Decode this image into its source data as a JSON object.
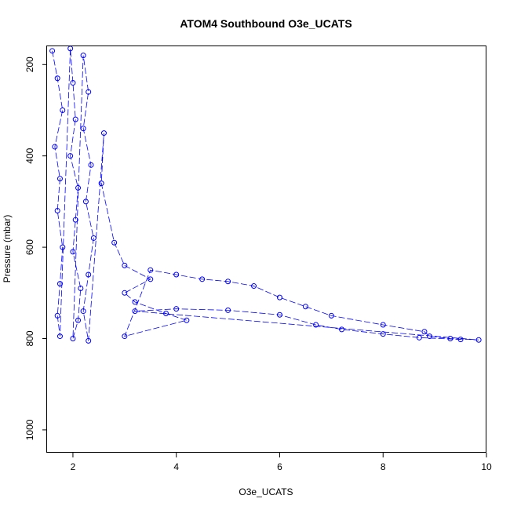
{
  "chart_data": {
    "type": "scatter",
    "title": "ATOM4 Southbound O3e_UCATS",
    "xlabel": "O3e_UCATS",
    "ylabel": "Pressure (mbar)",
    "xlim": [
      1.5,
      10.0
    ],
    "ylim": [
      1050,
      160
    ],
    "y_reversed": true,
    "x_ticks": [
      2,
      4,
      6,
      8,
      10
    ],
    "y_ticks": [
      200,
      400,
      600,
      800,
      1000
    ],
    "grid": false,
    "legend": "none",
    "marker": "open-circle",
    "connect_points": true,
    "color": "#0000ff",
    "series": [
      {
        "values": [
          [
            1.6,
            170
          ],
          [
            1.7,
            230
          ],
          [
            1.8,
            300
          ],
          [
            1.65,
            380
          ],
          [
            1.75,
            450
          ],
          [
            1.7,
            520
          ],
          [
            1.8,
            600
          ],
          [
            1.75,
            680
          ],
          [
            1.7,
            750
          ],
          [
            1.75,
            795
          ],
          [
            1.95,
            165
          ],
          [
            2.0,
            240
          ],
          [
            2.05,
            320
          ],
          [
            1.95,
            400
          ],
          [
            2.1,
            470
          ],
          [
            2.05,
            540
          ],
          [
            2.0,
            610
          ],
          [
            2.15,
            690
          ],
          [
            2.1,
            760
          ],
          [
            2.0,
            800
          ],
          [
            2.2,
            180
          ],
          [
            2.3,
            260
          ],
          [
            2.2,
            340
          ],
          [
            2.35,
            420
          ],
          [
            2.25,
            500
          ],
          [
            2.4,
            580
          ],
          [
            2.3,
            660
          ],
          [
            2.2,
            740
          ],
          [
            2.3,
            805
          ],
          [
            2.6,
            350
          ],
          [
            2.55,
            460
          ],
          [
            2.8,
            590
          ],
          [
            3.0,
            640
          ],
          [
            3.5,
            670
          ],
          [
            3.0,
            700
          ],
          [
            3.2,
            720
          ],
          [
            3.8,
            745
          ],
          [
            4.2,
            760
          ],
          [
            3.0,
            795
          ],
          [
            3.5,
            650
          ],
          [
            4.0,
            660
          ],
          [
            4.5,
            670
          ],
          [
            5.0,
            675
          ],
          [
            5.5,
            685
          ],
          [
            6.0,
            710
          ],
          [
            6.5,
            730
          ],
          [
            7.0,
            750
          ],
          [
            8.0,
            770
          ],
          [
            8.8,
            785
          ],
          [
            8.9,
            795
          ],
          [
            9.3,
            800
          ],
          [
            9.85,
            803
          ],
          [
            3.2,
            740
          ],
          [
            4.0,
            735
          ],
          [
            5.0,
            738
          ],
          [
            6.0,
            748
          ],
          [
            6.7,
            770
          ],
          [
            7.2,
            780
          ],
          [
            8.0,
            790
          ],
          [
            8.7,
            798
          ],
          [
            9.5,
            802
          ]
        ]
      }
    ]
  }
}
